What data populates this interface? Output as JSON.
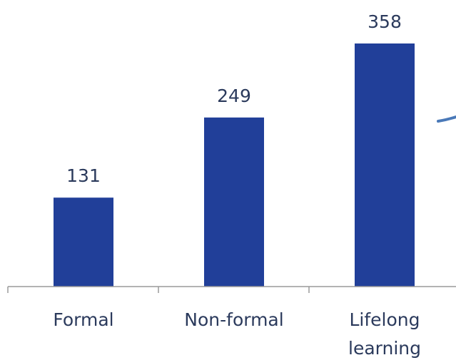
{
  "chart_data": {
    "type": "bar",
    "categories": [
      "Formal",
      "Non-formal",
      "Lifelong learning"
    ],
    "category_lines": [
      [
        "Formal"
      ],
      [
        "Non-formal"
      ],
      [
        "Lifelong",
        "learning"
      ]
    ],
    "values": [
      131,
      249,
      358
    ],
    "data_labels": [
      "131",
      "249",
      "358"
    ],
    "title": "",
    "xlabel": "",
    "ylabel": "",
    "ylim": [
      0,
      358
    ],
    "grid": false,
    "legend": "none"
  },
  "colors": {
    "bar": "#213f99",
    "axis": "#9a9a9a",
    "label_text": "#2b3a5c",
    "arrow": "#4a79b8"
  }
}
